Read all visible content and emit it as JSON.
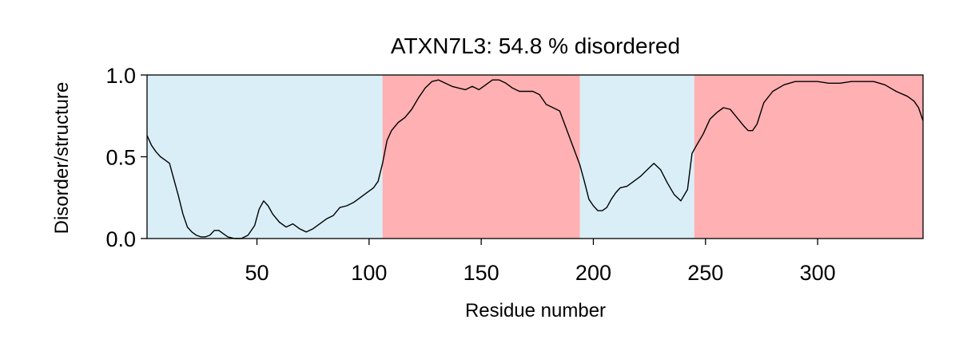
{
  "chart_data": {
    "type": "line",
    "title": "ATXN7L3: 54.8 % disordered",
    "xlabel": "Residue number",
    "ylabel": "Disorder/structure",
    "xlim": [
      1,
      347
    ],
    "ylim": [
      0,
      1
    ],
    "xticks": [
      50,
      100,
      150,
      200,
      250,
      300
    ],
    "yticks": [
      0.0,
      0.5,
      1.0
    ],
    "xtick_labels": [
      "50",
      "100",
      "150",
      "200",
      "250",
      "300"
    ],
    "ytick_labels": [
      "0.0",
      "0.5",
      "1.0"
    ],
    "grid": false,
    "regions": [
      {
        "start": 1,
        "end": 106,
        "state": "structured",
        "color": "#d9eef7"
      },
      {
        "start": 106,
        "end": 194,
        "state": "disordered",
        "color": "#ffb0b2"
      },
      {
        "start": 194,
        "end": 245,
        "state": "structured",
        "color": "#d9eef7"
      },
      {
        "start": 245,
        "end": 347,
        "state": "disordered",
        "color": "#ffb0b2"
      }
    ],
    "series": [
      {
        "line_color": "#000000",
        "x": [
          1,
          3,
          5,
          7,
          9,
          11,
          13,
          15,
          17,
          19,
          21,
          23,
          25,
          27,
          29,
          31,
          33,
          35,
          37,
          40,
          43,
          46,
          49,
          51,
          53,
          55,
          57,
          60,
          63,
          66,
          69,
          72,
          75,
          78,
          81,
          84,
          87,
          90,
          93,
          96,
          99,
          102,
          104,
          106,
          108,
          110,
          113,
          116,
          119,
          122,
          125,
          128,
          131,
          134,
          137,
          140,
          143,
          146,
          149,
          152,
          155,
          158,
          161,
          164,
          167,
          170,
          173,
          176,
          179,
          182,
          185,
          188,
          191,
          194,
          196,
          198,
          200,
          202,
          204,
          206,
          208,
          210,
          212,
          215,
          218,
          221,
          224,
          227,
          230,
          233,
          236,
          239,
          242,
          244,
          246,
          249,
          252,
          255,
          258,
          261,
          264,
          267,
          269,
          271,
          273,
          276,
          280,
          285,
          290,
          295,
          300,
          305,
          310,
          315,
          320,
          325,
          330,
          335,
          340,
          343,
          345,
          347
        ],
        "y": [
          0.63,
          0.57,
          0.53,
          0.5,
          0.48,
          0.46,
          0.36,
          0.26,
          0.15,
          0.07,
          0.04,
          0.02,
          0.01,
          0.01,
          0.02,
          0.05,
          0.05,
          0.03,
          0.01,
          0.0,
          0.0,
          0.02,
          0.08,
          0.18,
          0.23,
          0.2,
          0.15,
          0.1,
          0.07,
          0.09,
          0.06,
          0.04,
          0.06,
          0.09,
          0.12,
          0.14,
          0.19,
          0.2,
          0.22,
          0.25,
          0.28,
          0.31,
          0.35,
          0.46,
          0.6,
          0.66,
          0.71,
          0.74,
          0.79,
          0.86,
          0.92,
          0.96,
          0.97,
          0.95,
          0.93,
          0.92,
          0.91,
          0.93,
          0.91,
          0.94,
          0.97,
          0.97,
          0.95,
          0.92,
          0.9,
          0.9,
          0.9,
          0.88,
          0.82,
          0.8,
          0.78,
          0.67,
          0.56,
          0.45,
          0.35,
          0.24,
          0.2,
          0.17,
          0.17,
          0.19,
          0.24,
          0.28,
          0.31,
          0.32,
          0.35,
          0.38,
          0.42,
          0.46,
          0.42,
          0.34,
          0.27,
          0.23,
          0.3,
          0.52,
          0.57,
          0.64,
          0.73,
          0.77,
          0.8,
          0.79,
          0.74,
          0.69,
          0.66,
          0.66,
          0.7,
          0.83,
          0.9,
          0.94,
          0.96,
          0.96,
          0.96,
          0.95,
          0.95,
          0.96,
          0.96,
          0.96,
          0.94,
          0.9,
          0.87,
          0.84,
          0.8,
          0.72
        ]
      }
    ]
  }
}
